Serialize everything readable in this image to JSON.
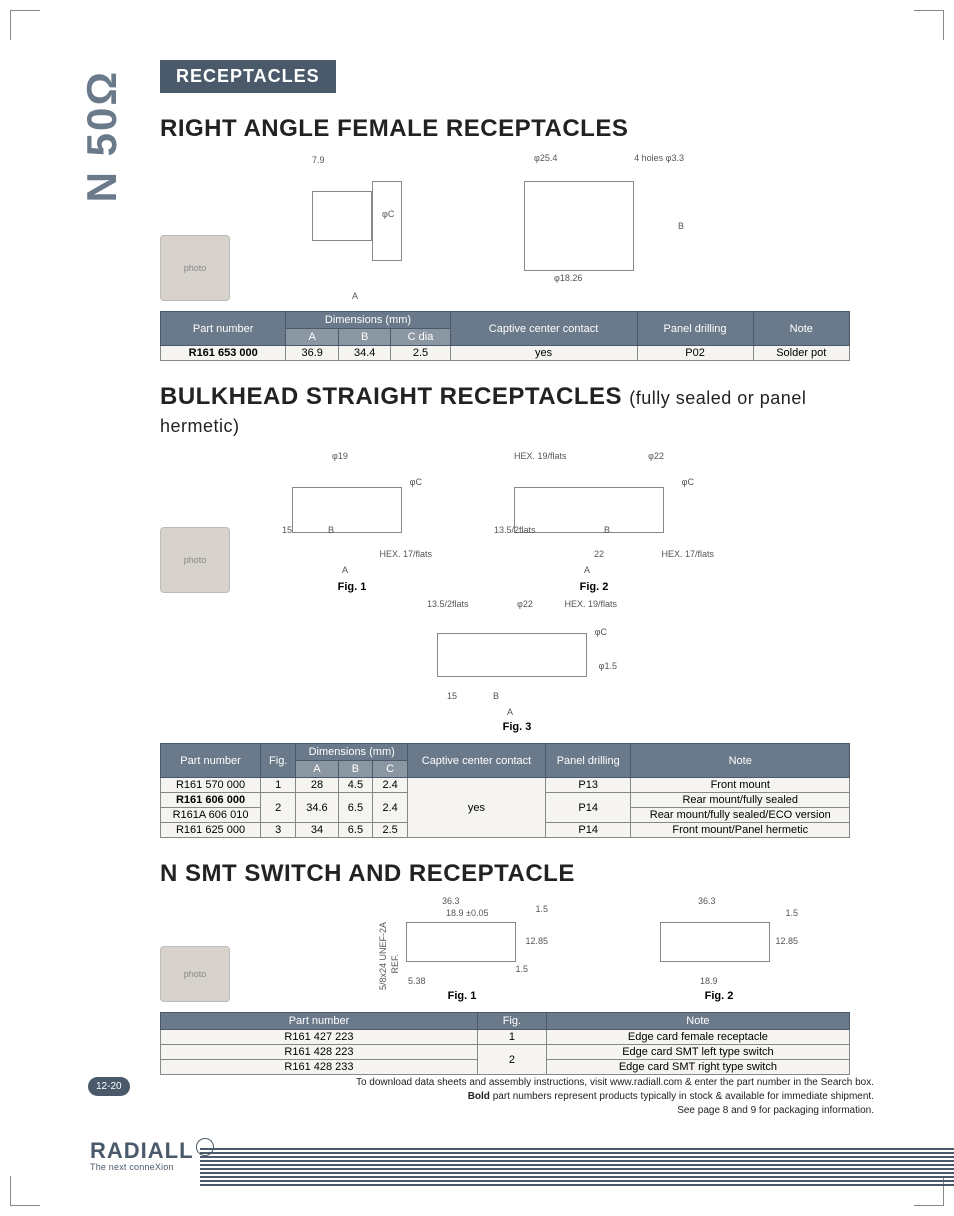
{
  "side_label": "N 50Ω",
  "section_bar": "RECEPTACLES",
  "page_number": "12-20",
  "brand": {
    "name": "RADIALL",
    "tagline": "The next conneXion"
  },
  "footnotes": [
    "To download data sheets and assembly instructions, visit www.radiall.com & enter the part number in the Search box.",
    "Bold part numbers represent products typically in stock & available for immediate shipment.",
    "See page 8 and 9 for packaging information."
  ],
  "colors": {
    "bar_bg": "#4a5a6a",
    "bar_bg_light": "#8a96a2",
    "side_text": "#6a7a8a",
    "cell_bg": "#f6f4f0",
    "border": "#888888",
    "text": "#222222"
  },
  "sec1": {
    "title": "RIGHT ANGLE FEMALE RECEPTACLES",
    "dims_on_drawing": {
      "top_width": "7.9",
      "flange": "φ25.4",
      "holes": "4 holes φ3.3",
      "height": "B",
      "flange_w": "φ18.26",
      "phi": "φC",
      "width": "A"
    },
    "table": {
      "headers": {
        "part": "Part number",
        "dims": "Dimensions (mm)",
        "A": "A",
        "B": "B",
        "C": "C dia",
        "captive": "Captive center contact",
        "panel": "Panel drilling",
        "note": "Note"
      },
      "rows": [
        {
          "pn": "R161 653 000",
          "A": "36.9",
          "B": "34.4",
          "C": "2.5",
          "captive": "yes",
          "panel": "P02",
          "note": "Solder pot",
          "bold": true
        }
      ]
    }
  },
  "sec2": {
    "title": "BULKHEAD STRAIGHT RECEPTACLES",
    "subtitle": "(fully sealed or panel hermetic)",
    "fig_labels": {
      "f1": "Fig. 1",
      "f2": "Fig. 2",
      "f3": "Fig. 3"
    },
    "dims_on_drawing": {
      "d1_top": "φ19",
      "d1_phi": "φC",
      "d1_b": "B",
      "d1_left": "15",
      "d1_hex": "HEX. 17/flats",
      "d1_a": "A",
      "d2_hex1": "HEX. 19/flats",
      "d2_top": "φ22",
      "d2_phi": "φC",
      "d2_left": "13.5/2flats",
      "d2_b": "B",
      "d2_22": "22",
      "d2_hex2": "HEX. 17/flats",
      "d2_a": "A",
      "d3_left": "13.5/2flats",
      "d3_top": "φ22",
      "d3_hex": "HEX. 19/flats",
      "d3_phi": "φC",
      "d3_pin": "φ1.5",
      "d3_15": "15",
      "d3_b": "B",
      "d3_a": "A"
    },
    "table": {
      "headers": {
        "part": "Part number",
        "fig": "Fig.",
        "dims": "Dimensions (mm)",
        "A": "A",
        "B": "B",
        "C": "C",
        "captive": "Captive center contact",
        "panel": "Panel drilling",
        "note": "Note"
      },
      "rows": [
        {
          "pn": "R161 570 000",
          "fig": "1",
          "A": "28",
          "B": "4.5",
          "C": "2.4",
          "captive": "yes",
          "panel": "P13",
          "note": "Front mount",
          "bold": false
        },
        {
          "pn": "R161 606 000",
          "fig": "2",
          "A": "34.6",
          "B": "6.5",
          "C": "2.4",
          "captive": "",
          "panel": "P14",
          "note": "Rear mount/fully sealed",
          "bold": true
        },
        {
          "pn": "R161A 606 010",
          "fig": "",
          "A": "",
          "B": "",
          "C": "",
          "captive": "",
          "panel": "",
          "note": "Rear mount/fully sealed/ECO version",
          "bold": false
        },
        {
          "pn": "R161 625 000",
          "fig": "3",
          "A": "34",
          "B": "6.5",
          "C": "2.5",
          "captive": "",
          "panel": "P14",
          "note": "Front mount/Panel hermetic",
          "bold": false
        }
      ]
    }
  },
  "sec3": {
    "title": "N SMT SWITCH AND RECEPTACLE",
    "fig_labels": {
      "f1": "Fig. 1",
      "f2": "Fig. 2"
    },
    "dims_on_drawing": {
      "a": "36.3",
      "b": "18.9 ±0.05",
      "c": "1.5",
      "d": "12.85",
      "e": "5.38",
      "f": "18.9",
      "g": "5/8x24 UNEF-2A",
      "ref": "REF."
    },
    "table": {
      "headers": {
        "part": "Part number",
        "fig": "Fig.",
        "note": "Note"
      },
      "rows": [
        {
          "pn": "R161 427 223",
          "fig": "1",
          "note": "Edge card female receptacle",
          "bold": false
        },
        {
          "pn": "R161 428 223",
          "fig": "2",
          "note": "Edge card SMT left type switch",
          "bold": false
        },
        {
          "pn": "R161 428 233",
          "fig": "",
          "note": "Edge card SMT right type switch",
          "bold": false
        }
      ]
    }
  }
}
